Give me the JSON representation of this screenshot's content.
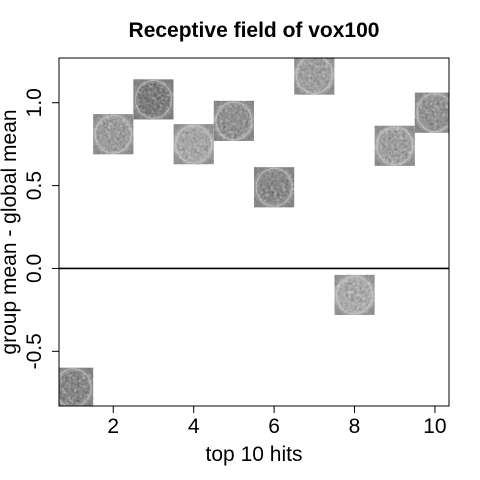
{
  "chart_data": {
    "type": "scatter",
    "title": "Receptive field of vox100",
    "xlabel": "top 10 hits",
    "ylabel": "group mean - global mean",
    "xlim": [
      0.65,
      10.35
    ],
    "ylim": [
      -0.83,
      1.27
    ],
    "x_ticks": [
      2,
      4,
      6,
      8,
      10
    ],
    "y_ticks": [
      -0.5,
      0.0,
      0.5,
      1.0
    ],
    "x_tick_labels": [
      "2",
      "4",
      "6",
      "8",
      "10"
    ],
    "y_tick_labels": [
      "-0.5",
      "0.0",
      "0.5",
      "1.0"
    ],
    "reference_line": 0.0,
    "marker": "image-thumbnail",
    "grid": false,
    "x": [
      1,
      2,
      3,
      4,
      5,
      6,
      7,
      8,
      9,
      10
    ],
    "values": [
      -0.72,
      0.81,
      1.02,
      0.75,
      0.89,
      0.49,
      1.17,
      -0.16,
      0.74,
      0.94
    ]
  }
}
